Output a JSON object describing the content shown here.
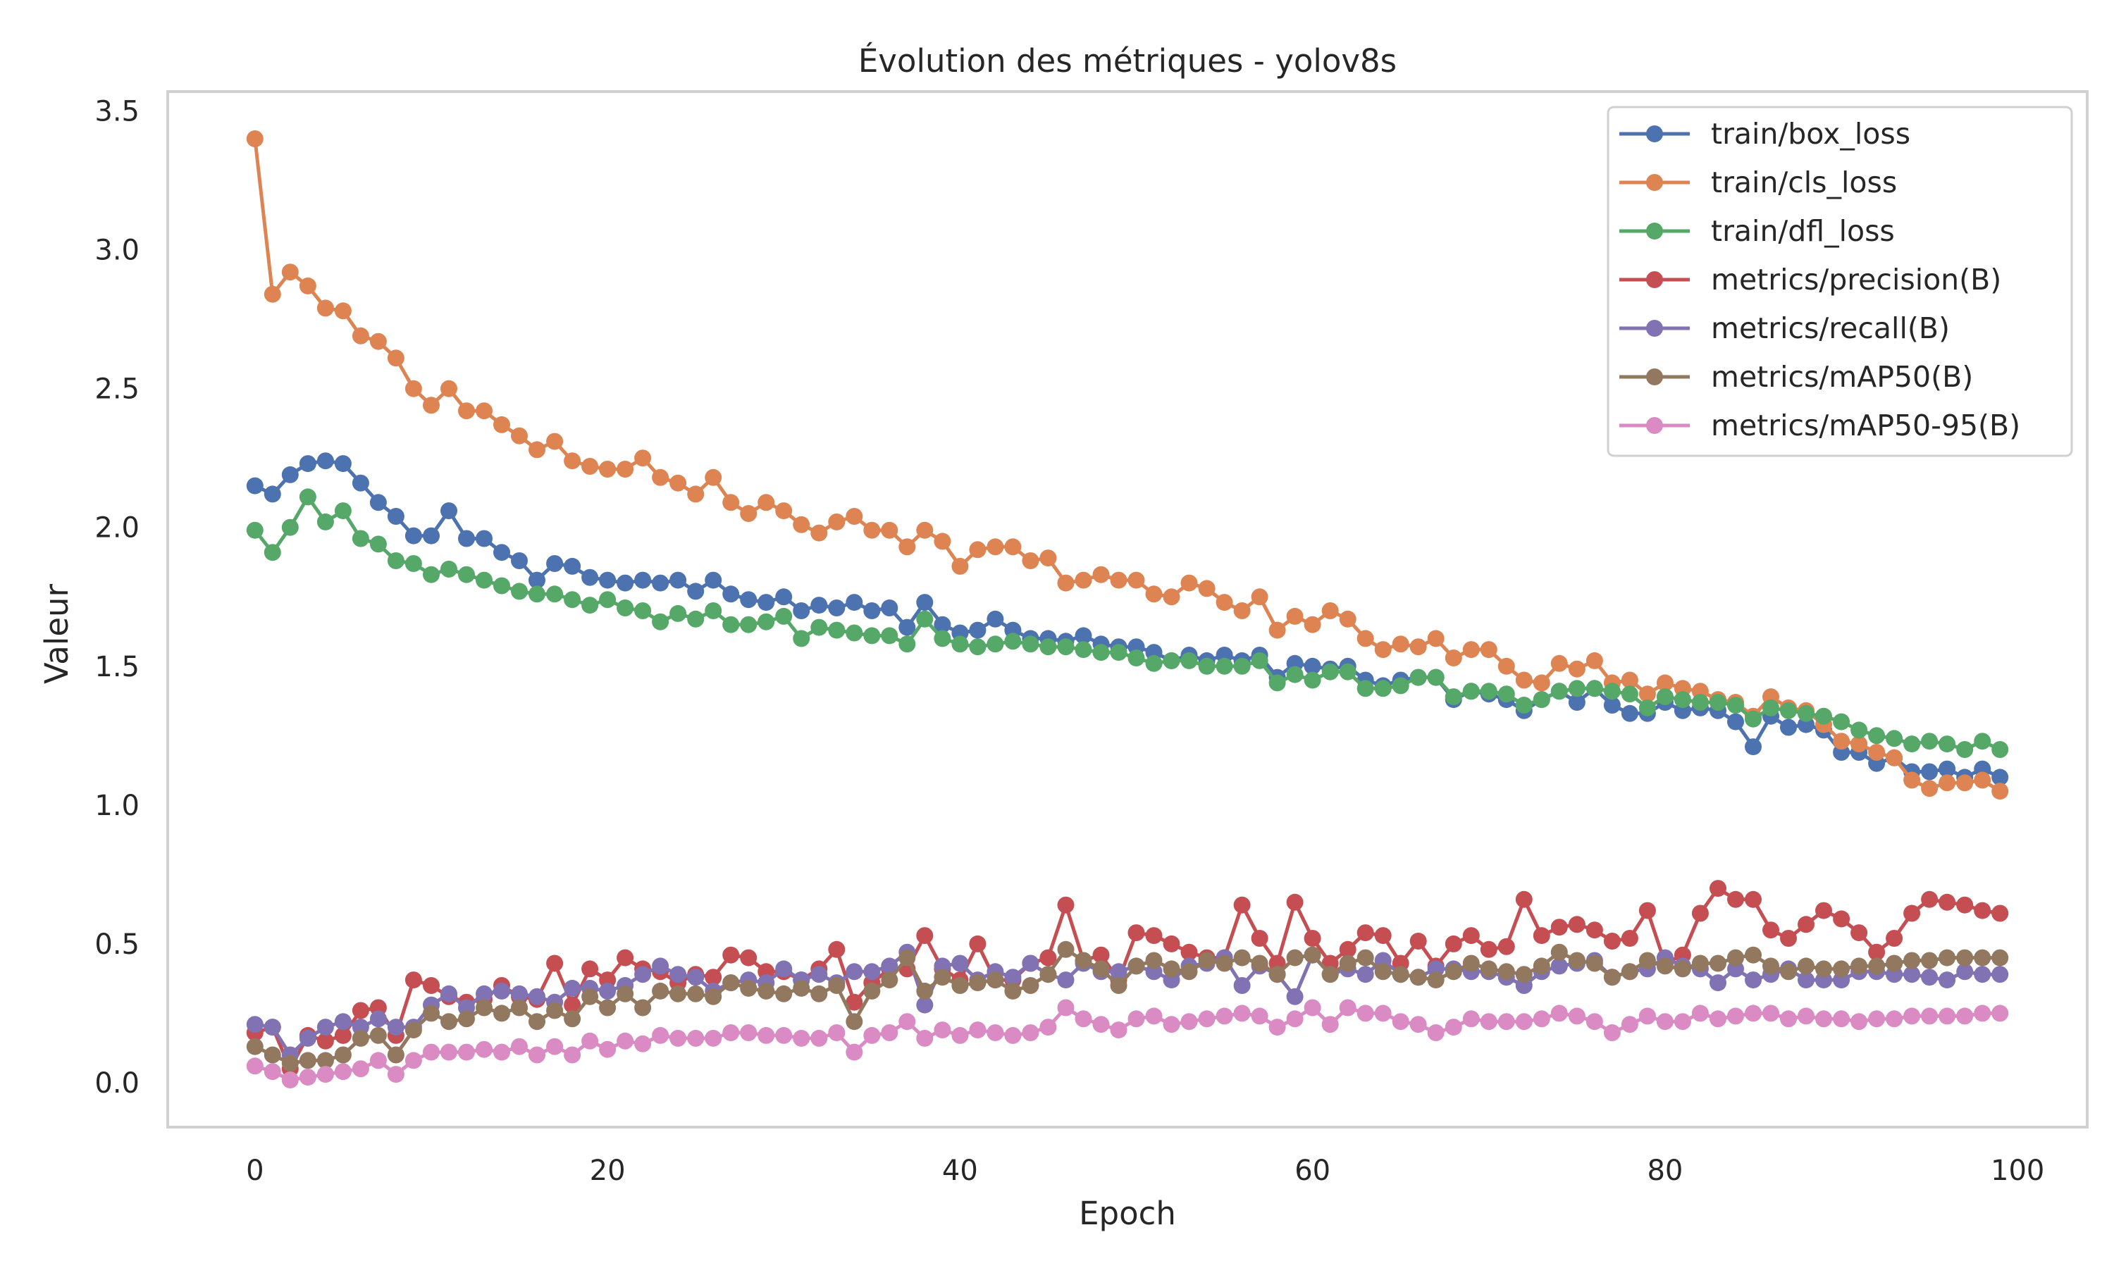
{
  "chart_data": {
    "type": "line",
    "title": "Évolution des métriques - yolov8s",
    "xlabel": "Epoch",
    "ylabel": "Valeur",
    "xlim": [
      -4.95,
      103.95
    ],
    "ylim": [
      -0.16,
      3.57
    ],
    "xticks": [
      0,
      20,
      40,
      60,
      80,
      100
    ],
    "yticks": [
      0.0,
      0.5,
      1.0,
      1.5,
      2.0,
      2.5,
      3.0,
      3.5
    ],
    "xtick_labels": [
      "0",
      "20",
      "40",
      "60",
      "80",
      "100"
    ],
    "ytick_labels": [
      "0.0",
      "0.5",
      "1.0",
      "1.5",
      "2.0",
      "2.5",
      "3.0",
      "3.5"
    ],
    "grid": false,
    "legend_position": "upper right",
    "markers": true,
    "x": [
      0,
      1,
      2,
      3,
      4,
      5,
      6,
      7,
      8,
      9,
      10,
      11,
      12,
      13,
      14,
      15,
      16,
      17,
      18,
      19,
      20,
      21,
      22,
      23,
      24,
      25,
      26,
      27,
      28,
      29,
      30,
      31,
      32,
      33,
      34,
      35,
      36,
      37,
      38,
      39,
      40,
      41,
      42,
      43,
      44,
      45,
      46,
      47,
      48,
      49,
      50,
      51,
      52,
      53,
      54,
      55,
      56,
      57,
      58,
      59,
      60,
      61,
      62,
      63,
      64,
      65,
      66,
      67,
      68,
      69,
      70,
      71,
      72,
      73,
      74,
      75,
      76,
      77,
      78,
      79,
      80,
      81,
      82,
      83,
      84,
      85,
      86,
      87,
      88,
      89,
      90,
      91,
      92,
      93,
      94,
      95,
      96,
      97,
      98,
      99
    ],
    "series": [
      {
        "name": "train/box_loss",
        "color": "#4c72b0",
        "values": [
          2.15,
          2.12,
          2.19,
          2.23,
          2.24,
          2.23,
          2.16,
          2.09,
          2.04,
          1.97,
          1.97,
          2.06,
          1.96,
          1.96,
          1.91,
          1.88,
          1.81,
          1.87,
          1.86,
          1.82,
          1.81,
          1.8,
          1.81,
          1.8,
          1.81,
          1.77,
          1.81,
          1.76,
          1.74,
          1.73,
          1.75,
          1.7,
          1.72,
          1.71,
          1.73,
          1.7,
          1.71,
          1.64,
          1.73,
          1.65,
          1.62,
          1.63,
          1.67,
          1.63,
          1.6,
          1.6,
          1.59,
          1.61,
          1.58,
          1.57,
          1.57,
          1.55,
          1.52,
          1.54,
          1.52,
          1.54,
          1.52,
          1.54,
          1.46,
          1.51,
          1.5,
          1.49,
          1.5,
          1.45,
          1.43,
          1.45,
          1.46,
          1.46,
          1.38,
          1.41,
          1.4,
          1.38,
          1.34,
          1.38,
          1.41,
          1.37,
          1.42,
          1.36,
          1.33,
          1.33,
          1.37,
          1.34,
          1.35,
          1.34,
          1.3,
          1.21,
          1.32,
          1.28,
          1.29,
          1.27,
          1.19,
          1.19,
          1.15,
          1.17,
          1.12,
          1.12,
          1.13,
          1.1,
          1.13,
          1.1
        ]
      },
      {
        "name": "train/cls_loss",
        "color": "#dd8452",
        "values": [
          3.4,
          2.84,
          2.92,
          2.87,
          2.79,
          2.78,
          2.69,
          2.67,
          2.61,
          2.5,
          2.44,
          2.5,
          2.42,
          2.42,
          2.37,
          2.33,
          2.28,
          2.31,
          2.24,
          2.22,
          2.21,
          2.21,
          2.25,
          2.18,
          2.16,
          2.12,
          2.18,
          2.09,
          2.05,
          2.09,
          2.06,
          2.01,
          1.98,
          2.02,
          2.04,
          1.99,
          1.99,
          1.93,
          1.99,
          1.95,
          1.86,
          1.92,
          1.93,
          1.93,
          1.88,
          1.89,
          1.8,
          1.81,
          1.83,
          1.81,
          1.81,
          1.76,
          1.75,
          1.8,
          1.78,
          1.73,
          1.7,
          1.75,
          1.63,
          1.68,
          1.65,
          1.7,
          1.67,
          1.6,
          1.56,
          1.58,
          1.57,
          1.6,
          1.53,
          1.56,
          1.56,
          1.5,
          1.45,
          1.44,
          1.51,
          1.49,
          1.52,
          1.44,
          1.45,
          1.4,
          1.44,
          1.42,
          1.41,
          1.38,
          1.37,
          1.32,
          1.39,
          1.35,
          1.34,
          1.29,
          1.23,
          1.22,
          1.19,
          1.17,
          1.09,
          1.06,
          1.08,
          1.08,
          1.09,
          1.05
        ]
      },
      {
        "name": "train/dfl_loss",
        "color": "#55a868",
        "values": [
          1.99,
          1.91,
          2.0,
          2.11,
          2.02,
          2.06,
          1.96,
          1.94,
          1.88,
          1.87,
          1.83,
          1.85,
          1.83,
          1.81,
          1.79,
          1.77,
          1.76,
          1.76,
          1.74,
          1.72,
          1.74,
          1.71,
          1.7,
          1.66,
          1.69,
          1.67,
          1.7,
          1.65,
          1.65,
          1.66,
          1.68,
          1.6,
          1.64,
          1.63,
          1.62,
          1.61,
          1.61,
          1.58,
          1.67,
          1.6,
          1.58,
          1.57,
          1.58,
          1.59,
          1.58,
          1.57,
          1.57,
          1.56,
          1.55,
          1.55,
          1.53,
          1.51,
          1.52,
          1.52,
          1.5,
          1.5,
          1.5,
          1.52,
          1.44,
          1.47,
          1.45,
          1.48,
          1.48,
          1.42,
          1.42,
          1.43,
          1.46,
          1.46,
          1.39,
          1.41,
          1.41,
          1.4,
          1.36,
          1.38,
          1.41,
          1.42,
          1.42,
          1.41,
          1.4,
          1.35,
          1.39,
          1.38,
          1.37,
          1.37,
          1.36,
          1.31,
          1.35,
          1.34,
          1.33,
          1.32,
          1.3,
          1.27,
          1.25,
          1.24,
          1.22,
          1.23,
          1.22,
          1.2,
          1.23,
          1.2
        ]
      },
      {
        "name": "metrics/precision(B)",
        "color": "#c44e52",
        "values": [
          0.18,
          0.2,
          0.05,
          0.17,
          0.15,
          0.17,
          0.26,
          0.27,
          0.17,
          0.37,
          0.35,
          0.31,
          0.29,
          0.3,
          0.35,
          0.31,
          0.3,
          0.43,
          0.28,
          0.41,
          0.37,
          0.45,
          0.41,
          0.4,
          0.36,
          0.39,
          0.38,
          0.46,
          0.45,
          0.4,
          0.4,
          0.37,
          0.41,
          0.48,
          0.29,
          0.36,
          0.41,
          0.41,
          0.53,
          0.41,
          0.37,
          0.5,
          0.37,
          0.37,
          0.43,
          0.45,
          0.64,
          0.44,
          0.46,
          0.37,
          0.54,
          0.53,
          0.5,
          0.47,
          0.45,
          0.45,
          0.64,
          0.52,
          0.43,
          0.65,
          0.52,
          0.43,
          0.48,
          0.54,
          0.53,
          0.43,
          0.51,
          0.42,
          0.5,
          0.53,
          0.48,
          0.49,
          0.66,
          0.53,
          0.56,
          0.57,
          0.55,
          0.51,
          0.52,
          0.62,
          0.43,
          0.46,
          0.61,
          0.7,
          0.66,
          0.66,
          0.55,
          0.52,
          0.57,
          0.62,
          0.59,
          0.54,
          0.47,
          0.52,
          0.61,
          0.66,
          0.65,
          0.64,
          0.62,
          0.61
        ]
      },
      {
        "name": "metrics/recall(B)",
        "color": "#8172b3",
        "values": [
          0.21,
          0.2,
          0.1,
          0.16,
          0.2,
          0.22,
          0.2,
          0.23,
          0.2,
          0.2,
          0.28,
          0.32,
          0.27,
          0.32,
          0.33,
          0.32,
          0.31,
          0.29,
          0.34,
          0.34,
          0.33,
          0.35,
          0.39,
          0.42,
          0.39,
          0.38,
          0.33,
          0.36,
          0.37,
          0.36,
          0.41,
          0.37,
          0.39,
          0.36,
          0.4,
          0.4,
          0.42,
          0.47,
          0.28,
          0.42,
          0.43,
          0.37,
          0.4,
          0.38,
          0.43,
          0.39,
          0.37,
          0.43,
          0.4,
          0.4,
          0.42,
          0.4,
          0.37,
          0.42,
          0.43,
          0.45,
          0.35,
          0.42,
          0.39,
          0.31,
          0.46,
          0.39,
          0.41,
          0.39,
          0.44,
          0.39,
          0.38,
          0.41,
          0.41,
          0.4,
          0.4,
          0.38,
          0.35,
          0.4,
          0.42,
          0.43,
          0.44,
          0.38,
          0.4,
          0.41,
          0.45,
          0.42,
          0.41,
          0.36,
          0.41,
          0.37,
          0.39,
          0.41,
          0.37,
          0.37,
          0.37,
          0.4,
          0.4,
          0.39,
          0.39,
          0.38,
          0.37,
          0.4,
          0.39,
          0.39
        ]
      },
      {
        "name": "metrics/mAP50(B)",
        "color": "#937860",
        "values": [
          0.13,
          0.1,
          0.07,
          0.08,
          0.08,
          0.1,
          0.16,
          0.17,
          0.1,
          0.19,
          0.25,
          0.22,
          0.23,
          0.27,
          0.25,
          0.27,
          0.22,
          0.26,
          0.23,
          0.31,
          0.27,
          0.32,
          0.27,
          0.33,
          0.32,
          0.32,
          0.31,
          0.36,
          0.34,
          0.33,
          0.32,
          0.34,
          0.32,
          0.35,
          0.22,
          0.33,
          0.37,
          0.45,
          0.33,
          0.38,
          0.35,
          0.36,
          0.37,
          0.33,
          0.35,
          0.39,
          0.48,
          0.44,
          0.41,
          0.35,
          0.42,
          0.44,
          0.41,
          0.4,
          0.44,
          0.43,
          0.45,
          0.43,
          0.39,
          0.45,
          0.46,
          0.39,
          0.43,
          0.45,
          0.4,
          0.39,
          0.38,
          0.37,
          0.4,
          0.43,
          0.41,
          0.4,
          0.39,
          0.42,
          0.47,
          0.44,
          0.43,
          0.38,
          0.4,
          0.44,
          0.42,
          0.41,
          0.43,
          0.43,
          0.45,
          0.46,
          0.42,
          0.4,
          0.42,
          0.41,
          0.41,
          0.42,
          0.42,
          0.43,
          0.44,
          0.44,
          0.45,
          0.45,
          0.45,
          0.45
        ]
      },
      {
        "name": "metrics/mAP50-95(B)",
        "color": "#da8bc3",
        "values": [
          0.06,
          0.04,
          0.01,
          0.02,
          0.03,
          0.04,
          0.05,
          0.08,
          0.03,
          0.08,
          0.11,
          0.11,
          0.11,
          0.12,
          0.11,
          0.13,
          0.1,
          0.13,
          0.1,
          0.15,
          0.12,
          0.15,
          0.14,
          0.17,
          0.16,
          0.16,
          0.16,
          0.18,
          0.18,
          0.17,
          0.17,
          0.16,
          0.16,
          0.18,
          0.11,
          0.17,
          0.18,
          0.22,
          0.16,
          0.19,
          0.17,
          0.19,
          0.18,
          0.17,
          0.18,
          0.2,
          0.27,
          0.23,
          0.21,
          0.19,
          0.23,
          0.24,
          0.21,
          0.22,
          0.23,
          0.24,
          0.25,
          0.24,
          0.2,
          0.23,
          0.27,
          0.21,
          0.27,
          0.25,
          0.25,
          0.22,
          0.21,
          0.18,
          0.2,
          0.23,
          0.22,
          0.22,
          0.22,
          0.23,
          0.25,
          0.24,
          0.22,
          0.18,
          0.21,
          0.24,
          0.22,
          0.22,
          0.25,
          0.23,
          0.24,
          0.25,
          0.25,
          0.23,
          0.24,
          0.23,
          0.23,
          0.22,
          0.23,
          0.23,
          0.24,
          0.24,
          0.24,
          0.24,
          0.25,
          0.25
        ]
      }
    ]
  }
}
